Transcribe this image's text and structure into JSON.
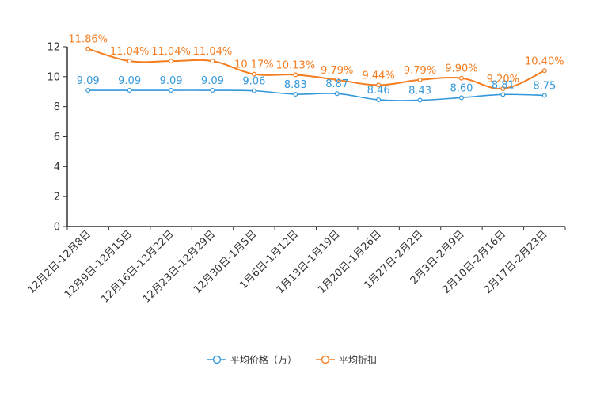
{
  "chart_data": {
    "type": "line",
    "title": "",
    "xlabel": "",
    "ylabel": "",
    "ylim": [
      0,
      12
    ],
    "yticks": [
      0,
      2,
      4,
      6,
      8,
      10,
      12
    ],
    "grid": false,
    "legend_position": "bottom-center",
    "categories": [
      "12月2日-12月8日",
      "12月9日-12月15日",
      "12月16日-12月22日",
      "12月23日-12月29日",
      "12月30日-1月5日",
      "1月6日-1月12日",
      "1月13日-1月19日",
      "1月20日-1月26日",
      "1月27日-2月2日",
      "2月3日-2月9日",
      "2月10日-2月16日",
      "2月17日-2月23日"
    ],
    "series": [
      {
        "name": "平均价格（万）",
        "color": "#3398db",
        "values": [
          9.09,
          9.09,
          9.09,
          9.09,
          9.06,
          8.83,
          8.87,
          8.46,
          8.43,
          8.6,
          8.81,
          8.75
        ],
        "labels": [
          "9.09",
          "9.09",
          "9.09",
          "9.09",
          "9.06",
          "8.83",
          "8.87",
          "8.46",
          "8.43",
          "8.60",
          "8.81",
          "8.75"
        ]
      },
      {
        "name": "平均折扣",
        "color": "#f57c1f",
        "values": [
          11.86,
          11.04,
          11.04,
          11.04,
          10.17,
          10.13,
          9.79,
          9.44,
          9.79,
          9.9,
          9.2,
          10.4
        ],
        "labels": [
          "11.86%",
          "11.04%",
          "11.04%",
          "11.04%",
          "10.17%",
          "10.13%",
          "9.79%",
          "9.44%",
          "9.79%",
          "9.90%",
          "9.20%",
          "10.40%"
        ]
      }
    ]
  }
}
